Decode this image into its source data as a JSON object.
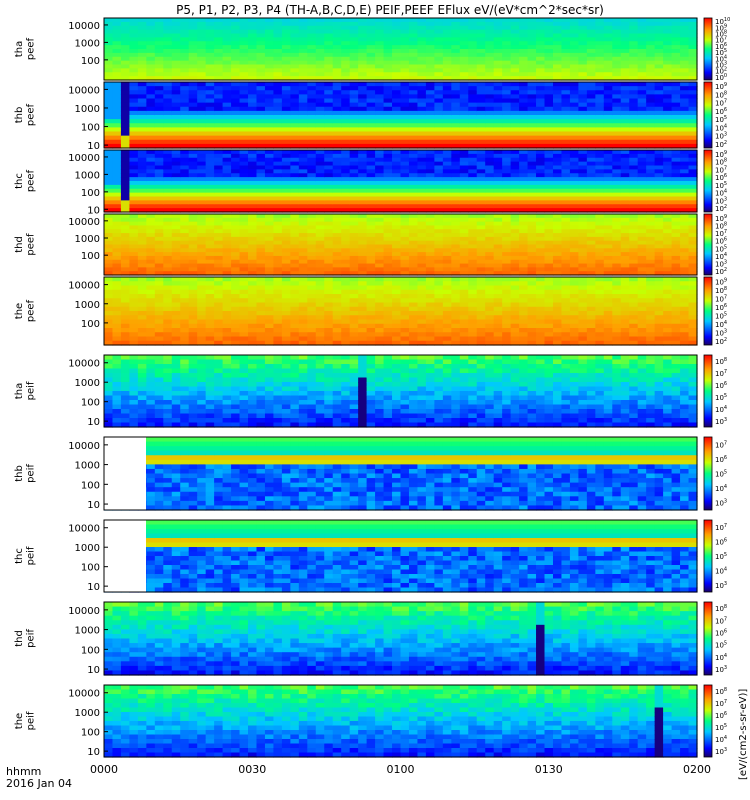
{
  "chart_data": {
    "type": "heatmap",
    "title": "P5, P1, P2, P3, P4 (TH-A,B,C,D,E) PEIF,PEEF EFlux eV/(eV*cm^2*sec*sr)",
    "x": {
      "ticks": [
        "0000",
        "0030",
        "0100",
        "0130",
        "0200"
      ],
      "tick_minutes": [
        0,
        30,
        60,
        90,
        120
      ],
      "label": "hhmm",
      "date": "2016 Jan 04"
    },
    "colorbar_label": "[eV/(cm2-s-sr-eV)]",
    "panels": [
      {
        "label": [
          "tha",
          "peef"
        ],
        "yticks": [
          "100",
          "1000",
          "10000"
        ],
        "ylim_ev": [
          7,
          25000
        ],
        "cbar": [
          "10^0",
          "10^2",
          "10^3",
          "10^4",
          "10^5",
          "10^6",
          "10^7",
          "10^8",
          "10^9",
          "10^10"
        ],
        "kind": "electron"
      },
      {
        "label": [
          "thb",
          "peef"
        ],
        "yticks": [
          "10",
          "100",
          "1000",
          "10000"
        ],
        "ylim_ev": [
          7,
          25000
        ],
        "cbar": [
          "10^2",
          "10^3",
          "10^4",
          "10^5",
          "10^6",
          "10^7",
          "10^8",
          "10^9"
        ],
        "kind": "electron_blue"
      },
      {
        "label": [
          "thc",
          "peef"
        ],
        "yticks": [
          "10",
          "100",
          "1000",
          "10000"
        ],
        "ylim_ev": [
          7,
          25000
        ],
        "cbar": [
          "10^2",
          "10^3",
          "10^4",
          "10^5",
          "10^6",
          "10^7",
          "10^8",
          "10^9"
        ],
        "kind": "electron_blue"
      },
      {
        "label": [
          "thd",
          "peef"
        ],
        "yticks": [
          "100",
          "1000",
          "10000"
        ],
        "ylim_ev": [
          7,
          25000
        ],
        "cbar": [
          "10^2",
          "10^3",
          "10^4",
          "10^5",
          "10^6",
          "10^7",
          "10^8",
          "10^9"
        ],
        "kind": "electron_hot"
      },
      {
        "label": [
          "the",
          "peef"
        ],
        "yticks": [
          "100",
          "1000",
          "10000"
        ],
        "ylim_ev": [
          7,
          25000
        ],
        "cbar": [
          "10^2",
          "10^3",
          "10^4",
          "10^5",
          "10^6",
          "10^7",
          "10^8",
          "10^9"
        ],
        "kind": "electron_hot"
      },
      {
        "label": [
          "tha",
          "peif"
        ],
        "yticks": [
          "10",
          "100",
          "1000",
          "10000"
        ],
        "ylim_ev": [
          5,
          25000
        ],
        "cbar": [
          "10^3",
          "10^4",
          "10^5",
          "10^6",
          "10^7",
          "10^8"
        ],
        "kind": "ion",
        "spike_minute": 53
      },
      {
        "label": [
          "thb",
          "peif"
        ],
        "yticks": [
          "10",
          "100",
          "1000",
          "10000"
        ],
        "ylim_ev": [
          5,
          25000
        ],
        "cbar": [
          "10^3",
          "10^4",
          "10^5",
          "10^6",
          "10^7"
        ],
        "kind": "ion_dark",
        "gap_minutes": [
          0,
          8.5
        ]
      },
      {
        "label": [
          "thc",
          "peif"
        ],
        "yticks": [
          "10",
          "100",
          "1000",
          "10000"
        ],
        "ylim_ev": [
          5,
          25000
        ],
        "cbar": [
          "10^3",
          "10^4",
          "10^5",
          "10^6",
          "10^7"
        ],
        "kind": "ion_dark",
        "gap_minutes": [
          0,
          8.5
        ]
      },
      {
        "label": [
          "thd",
          "peif"
        ],
        "yticks": [
          "10",
          "100",
          "1000",
          "10000"
        ],
        "ylim_ev": [
          5,
          25000
        ],
        "cbar": [
          "10^3",
          "10^4",
          "10^5",
          "10^6",
          "10^7",
          "10^8"
        ],
        "kind": "ion",
        "spike_minute": 88
      },
      {
        "label": [
          "the",
          "peif"
        ],
        "yticks": [
          "10",
          "100",
          "1000",
          "10000"
        ],
        "ylim_ev": [
          5,
          25000
        ],
        "cbar": [
          "10^3",
          "10^4",
          "10^5",
          "10^6",
          "10^7",
          "10^8"
        ],
        "kind": "ion",
        "spike_minute": 112
      }
    ]
  }
}
